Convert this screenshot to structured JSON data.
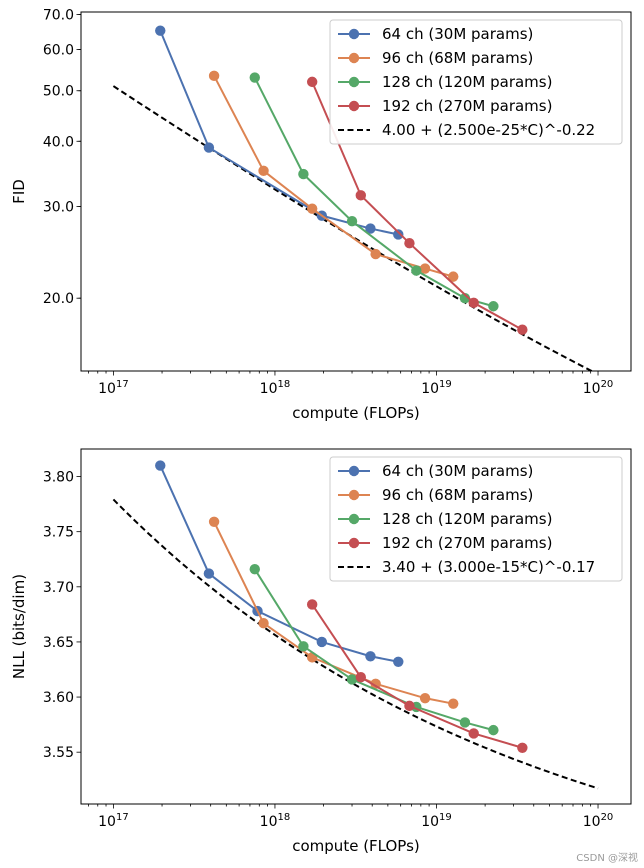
{
  "chart_data": [
    {
      "type": "line",
      "xscale": "log",
      "yscale": "log",
      "xlabel": "compute (FLOPs)",
      "ylabel": "FID",
      "xlim": [
        6.3e+16,
        1.6e+20
      ],
      "ylim": [
        14.5,
        70.8
      ],
      "xticks": [
        {
          "value": 1e+17,
          "base": "10",
          "exp": "17"
        },
        {
          "value": 1e+18,
          "base": "10",
          "exp": "18"
        },
        {
          "value": 1e+19,
          "base": "10",
          "exp": "19"
        },
        {
          "value": 1e+20,
          "base": "10",
          "exp": "20"
        }
      ],
      "yticks": [
        {
          "value": 20,
          "label": "20.0"
        },
        {
          "value": 30,
          "label": "30.0"
        },
        {
          "value": 40,
          "label": "40.0"
        },
        {
          "value": 50,
          "label": "50.0"
        },
        {
          "value": 60,
          "label": "60.0"
        },
        {
          "value": 70,
          "label": "70.0"
        }
      ],
      "legend_position": "top-right",
      "series": [
        {
          "name": "64 ch (30M params)",
          "color": "#4c72b0",
          "x": [
            1.95e+17,
            3.9e+17,
            1.95e+18,
            3.9e+18,
            5.8e+18
          ],
          "y": [
            65.2,
            38.9,
            28.8,
            27.2,
            26.5
          ]
        },
        {
          "name": "96 ch (68M params)",
          "color": "#dd8452",
          "x": [
            4.2e+17,
            8.5e+17,
            1.7e+18,
            4.2e+18,
            8.5e+18,
            1.27e+19
          ],
          "y": [
            53.4,
            35.1,
            29.7,
            24.3,
            22.8,
            22.0
          ]
        },
        {
          "name": "128 ch (120M params)",
          "color": "#55a868",
          "x": [
            7.5e+17,
            1.5e+18,
            3e+18,
            7.5e+18,
            1.5e+19,
            2.25e+19
          ],
          "y": [
            53.0,
            34.6,
            28.1,
            22.6,
            20.0,
            19.3
          ]
        },
        {
          "name": "192 ch (270M params)",
          "color": "#c44e52",
          "x": [
            1.7e+18,
            3.4e+18,
            6.8e+18,
            1.7e+19,
            3.4e+19
          ],
          "y": [
            52.0,
            31.5,
            25.5,
            19.6,
            17.4
          ]
        }
      ],
      "fit": {
        "label": "4.00 + (2.500e-25*C)^-0.22",
        "a": 4.0,
        "b": 2.5e-25,
        "c": -0.22,
        "x_range": [
          1e+17,
          1e+20
        ],
        "color": "#000000"
      }
    },
    {
      "type": "line",
      "xscale": "log",
      "yscale": "linear",
      "xlabel": "compute (FLOPs)",
      "ylabel": "NLL (bits/dim)",
      "xlim": [
        6.3e+16,
        1.6e+20
      ],
      "ylim": [
        3.503,
        3.825
      ],
      "xticks": [
        {
          "value": 1e+17,
          "base": "10",
          "exp": "17"
        },
        {
          "value": 1e+18,
          "base": "10",
          "exp": "18"
        },
        {
          "value": 1e+19,
          "base": "10",
          "exp": "19"
        },
        {
          "value": 1e+20,
          "base": "10",
          "exp": "20"
        }
      ],
      "yticks": [
        {
          "value": 3.55,
          "label": "3.55"
        },
        {
          "value": 3.6,
          "label": "3.60"
        },
        {
          "value": 3.65,
          "label": "3.65"
        },
        {
          "value": 3.7,
          "label": "3.70"
        },
        {
          "value": 3.75,
          "label": "3.75"
        },
        {
          "value": 3.8,
          "label": "3.80"
        }
      ],
      "legend_position": "top-right",
      "series": [
        {
          "name": "64 ch (30M params)",
          "color": "#4c72b0",
          "x": [
            1.95e+17,
            3.9e+17,
            7.8e+17,
            1.95e+18,
            3.9e+18,
            5.8e+18
          ],
          "y": [
            3.81,
            3.712,
            3.678,
            3.65,
            3.637,
            3.632
          ]
        },
        {
          "name": "96 ch (68M params)",
          "color": "#dd8452",
          "x": [
            4.2e+17,
            8.5e+17,
            1.7e+18,
            4.2e+18,
            8.5e+18,
            1.27e+19
          ],
          "y": [
            3.759,
            3.667,
            3.636,
            3.612,
            3.599,
            3.594
          ]
        },
        {
          "name": "128 ch (120M params)",
          "color": "#55a868",
          "x": [
            7.5e+17,
            1.5e+18,
            3e+18,
            7.5e+18,
            1.5e+19,
            2.25e+19
          ],
          "y": [
            3.716,
            3.646,
            3.616,
            3.591,
            3.577,
            3.57
          ]
        },
        {
          "name": "192 ch (270M params)",
          "color": "#c44e52",
          "x": [
            1.7e+18,
            3.4e+18,
            6.8e+18,
            1.7e+19,
            3.4e+19
          ],
          "y": [
            3.684,
            3.618,
            3.592,
            3.567,
            3.554
          ]
        }
      ],
      "fit": {
        "label": "3.40 + (3.000e-15*C)^-0.17",
        "a": 3.4,
        "b": 3e-15,
        "c": -0.17,
        "x_range": [
          1e+17,
          1e+20
        ],
        "color": "#000000"
      }
    }
  ],
  "watermark": "CSDN @深视"
}
